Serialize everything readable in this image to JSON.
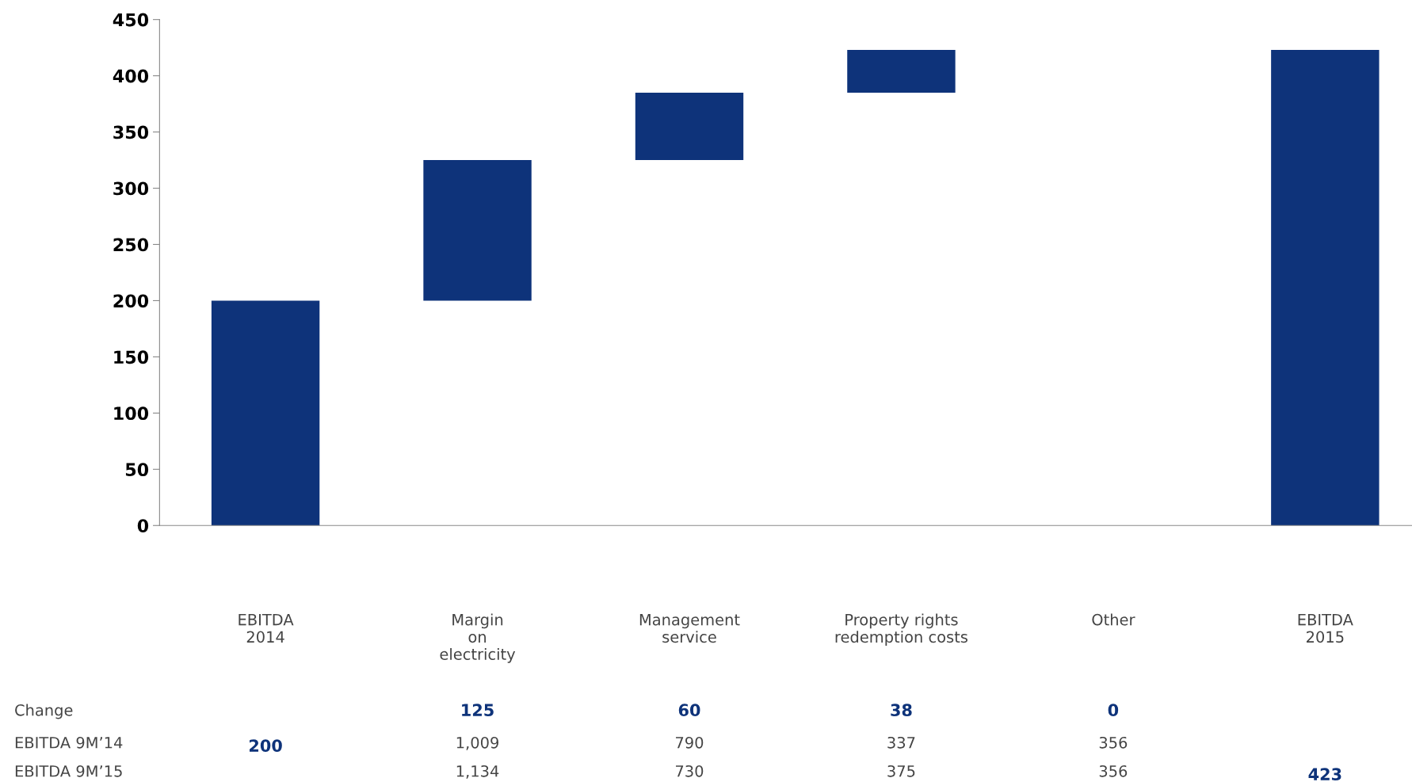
{
  "chart_data": {
    "type": "bar",
    "categories": [
      "EBITDA\n2014",
      "Margin\non\nelectricity",
      "Management\nservice",
      "Property rights\nredemption costs",
      "Other",
      "EBITDA\n2015"
    ],
    "values": [
      200,
      125,
      60,
      38,
      null,
      423
    ],
    "base": [
      0,
      200,
      325,
      385,
      null,
      0
    ],
    "color": "#0e337a",
    "ylim": [
      0,
      450
    ],
    "yticks": [
      0,
      50,
      100,
      150,
      200,
      250,
      300,
      350,
      400,
      450
    ],
    "grid": false,
    "legend": false,
    "annotations": [
      "Change",
      "EBITDA 9M’14",
      "EBITDA 9M’15",
      "125",
      "60",
      "38",
      "0",
      "200",
      "1,009",
      "790",
      "337",
      "356",
      "1,134",
      "730",
      "375",
      "356",
      "423"
    ]
  }
}
